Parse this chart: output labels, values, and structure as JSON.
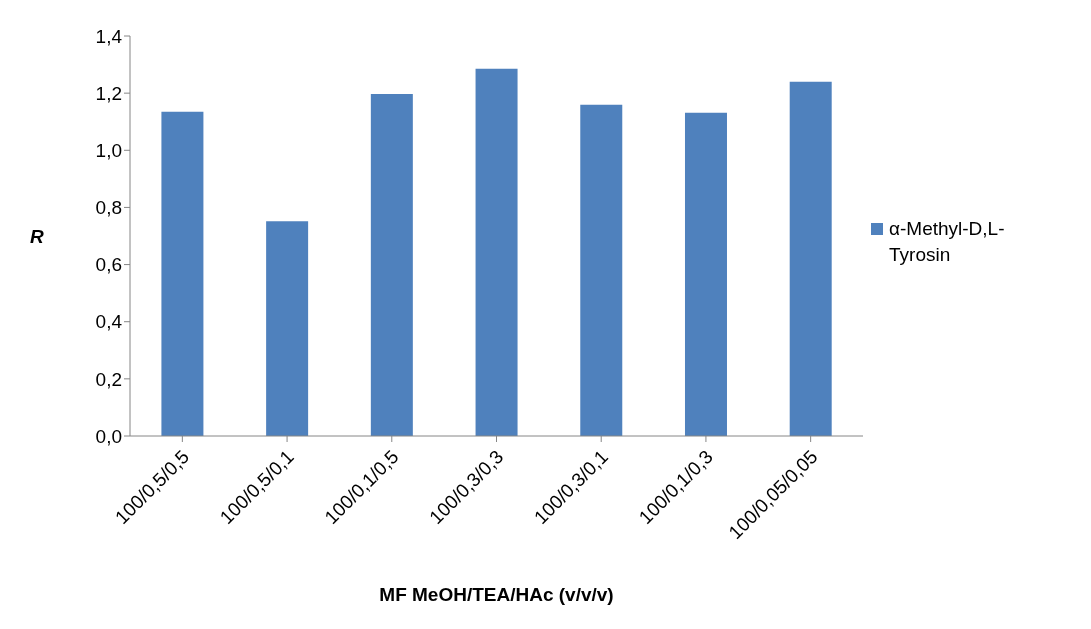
{
  "chart_data": {
    "type": "bar",
    "xlabel": "MF MeOH/TEA/HAc (v/v/v)",
    "ylabel": "R",
    "categories": [
      "100/0,5/0,5",
      "100/0,5/0,1",
      "100/0,1/0,5",
      "100/0,3/0,3",
      "100/0,3/0,1",
      "100/0,1/0,3",
      "100/0,05/0,05"
    ],
    "series": [
      {
        "name": "α-Methyl-D,L-Tyrosin",
        "color": "#4f81bd",
        "values": [
          1.135,
          0.752,
          1.197,
          1.285,
          1.159,
          1.131,
          1.24
        ]
      }
    ],
    "ylim": [
      0,
      1.4
    ],
    "yticks": [
      {
        "value": 0,
        "label": "0,0"
      },
      {
        "value": 0.2,
        "label": "0,2"
      },
      {
        "value": 0.4,
        "label": "0,4"
      },
      {
        "value": 0.6,
        "label": "0,6"
      },
      {
        "value": 0.8,
        "label": "0,8"
      },
      {
        "value": 1,
        "label": "1,0"
      },
      {
        "value": 1.2,
        "label": "1,2"
      },
      {
        "value": 1.4,
        "label": "1,4"
      }
    ],
    "grid": false,
    "legend": "right"
  }
}
